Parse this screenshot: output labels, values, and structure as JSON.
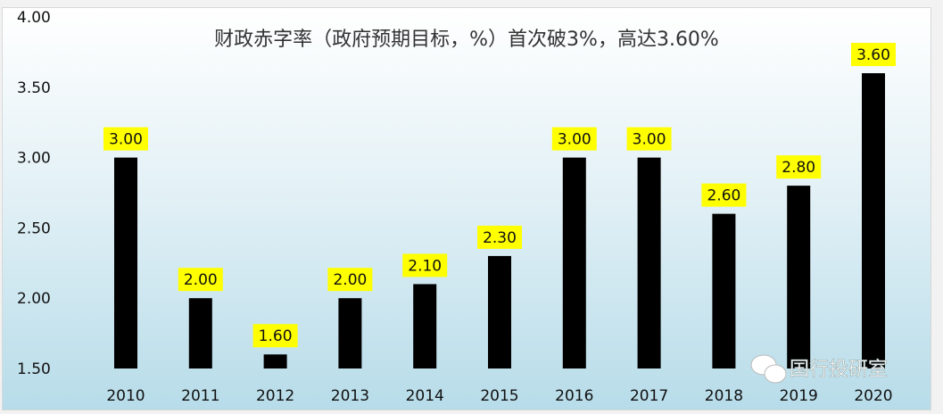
{
  "chart_data": {
    "type": "bar",
    "title": "财政赤字率（政府预期目标，%）首次破3%，高达3.60%",
    "categories": [
      "2010",
      "2011",
      "2012",
      "2013",
      "2014",
      "2015",
      "2016",
      "2017",
      "2018",
      "2019",
      "2020"
    ],
    "values": [
      3.0,
      2.0,
      1.6,
      2.0,
      2.1,
      2.3,
      3.0,
      3.0,
      2.6,
      2.8,
      3.6
    ],
    "data_labels": [
      "3.00",
      "2.00",
      "1.60",
      "2.00",
      "2.10",
      "2.30",
      "3.00",
      "3.00",
      "2.60",
      "2.80",
      "3.60"
    ],
    "yticks": [
      "1.50",
      "2.00",
      "2.50",
      "3.00",
      "3.50",
      "4.00"
    ],
    "ylim": [
      1.5,
      4.0
    ],
    "xlabel": "",
    "ylabel": "",
    "grid": false,
    "bar_color": "#000000",
    "label_bg": "#ffff00"
  },
  "watermark": "国行投研室"
}
